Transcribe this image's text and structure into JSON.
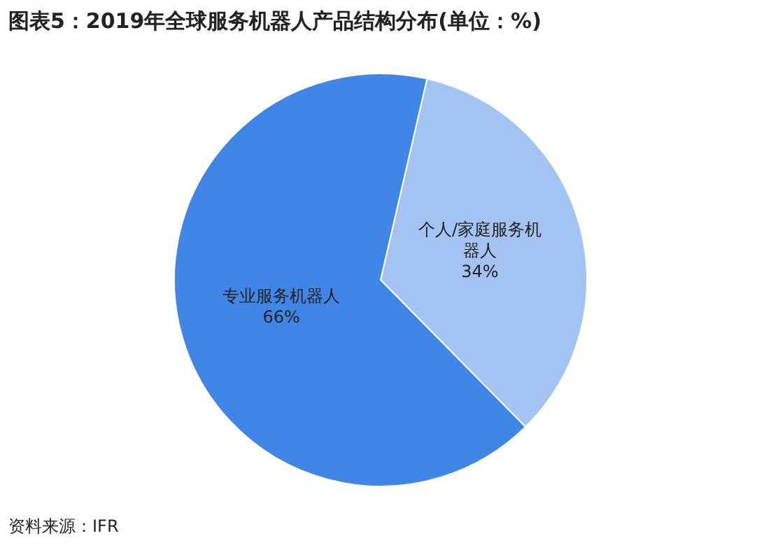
{
  "chart_data": {
    "type": "pie",
    "title": "图表5：2019年全球服务机器人产品结构分布(单位：%)",
    "categories": [
      "个人/家庭服务机器人",
      "专业服务机器人"
    ],
    "values": [
      34,
      66
    ],
    "colors": [
      "#a3c4f3",
      "#3f86e6"
    ],
    "value_labels": [
      "34%",
      "66%"
    ],
    "legend": false,
    "annotations": [
      "资料来源：IFR"
    ]
  }
}
